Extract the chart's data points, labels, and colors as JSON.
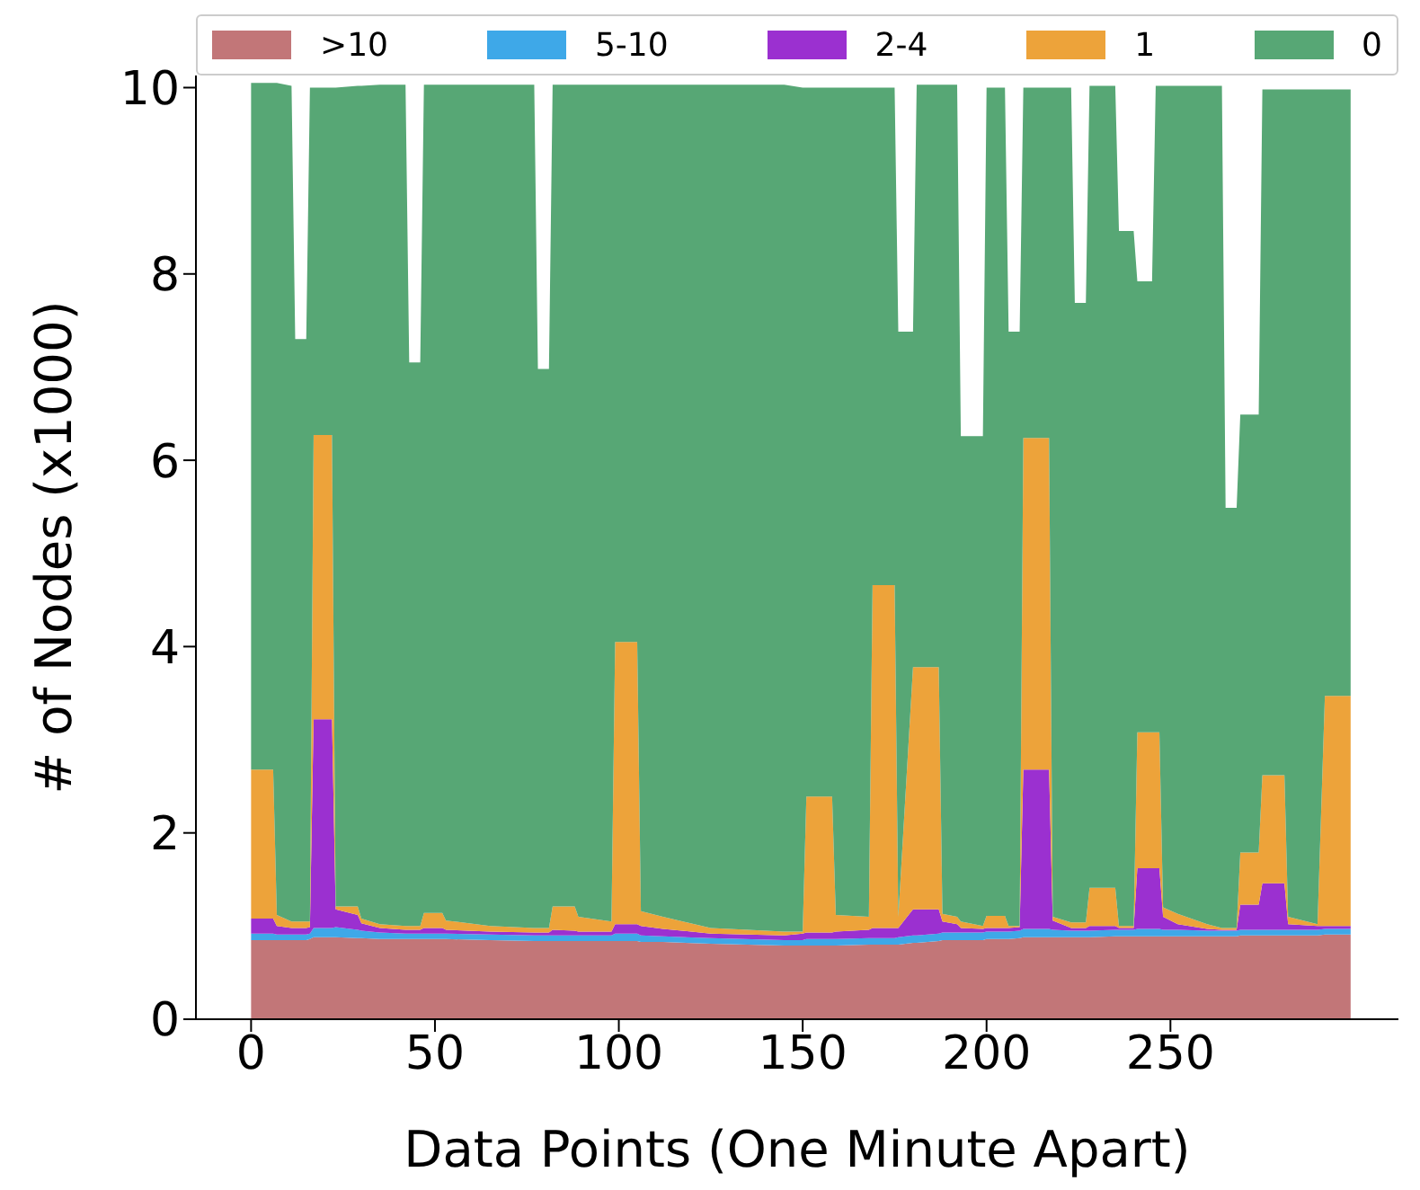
{
  "chart_data": {
    "type": "area",
    "stacked": true,
    "xlabel": "Data Points (One Minute Apart)",
    "ylabel": "# of Nodes (x1000)",
    "legend": "top",
    "grid": false,
    "xlim": [
      -15,
      312
    ],
    "xticks": [
      0,
      50,
      100,
      150,
      200,
      250
    ],
    "ylim": [
      0,
      10.13
    ],
    "yticks": [
      0,
      2,
      4,
      6,
      8,
      10
    ],
    "x": [
      0,
      6,
      7,
      11,
      12,
      15,
      16,
      17,
      22,
      23,
      29,
      30,
      35,
      42,
      43,
      46,
      47,
      52,
      53,
      65,
      77,
      78,
      81,
      82,
      88,
      89,
      98,
      99,
      105,
      106,
      112,
      125,
      145,
      150,
      151,
      158,
      159,
      168,
      169,
      175,
      176,
      180,
      181,
      187,
      188,
      192,
      193,
      199,
      200,
      205,
      206,
      209,
      210,
      217,
      218,
      223,
      224,
      227,
      228,
      235,
      236,
      240,
      241,
      245,
      246,
      247,
      248,
      252,
      260,
      264,
      265,
      268,
      269,
      274,
      275,
      281,
      282,
      290,
      292,
      299
    ],
    "series": [
      {
        "name": ">10",
        "color": "#c27678",
        "values": [
          0.85,
          0.85,
          0.85,
          0.85,
          0.85,
          0.85,
          0.86,
          0.88,
          0.88,
          0.88,
          0.87,
          0.87,
          0.86,
          0.86,
          0.86,
          0.86,
          0.86,
          0.86,
          0.86,
          0.85,
          0.84,
          0.84,
          0.84,
          0.84,
          0.84,
          0.84,
          0.84,
          0.84,
          0.84,
          0.83,
          0.83,
          0.81,
          0.79,
          0.79,
          0.79,
          0.79,
          0.79,
          0.8,
          0.8,
          0.8,
          0.8,
          0.82,
          0.82,
          0.84,
          0.85,
          0.85,
          0.85,
          0.85,
          0.86,
          0.86,
          0.86,
          0.87,
          0.88,
          0.88,
          0.88,
          0.88,
          0.88,
          0.88,
          0.88,
          0.89,
          0.89,
          0.89,
          0.89,
          0.89,
          0.89,
          0.89,
          0.89,
          0.89,
          0.89,
          0.89,
          0.89,
          0.89,
          0.9,
          0.9,
          0.9,
          0.9,
          0.9,
          0.9,
          0.91,
          0.91
        ]
      },
      {
        "name": "5-10",
        "color": "#3ea8e8",
        "values": [
          0.07,
          0.07,
          0.06,
          0.06,
          0.06,
          0.06,
          0.06,
          0.1,
          0.1,
          0.11,
          0.09,
          0.08,
          0.07,
          0.06,
          0.06,
          0.06,
          0.06,
          0.06,
          0.06,
          0.06,
          0.06,
          0.06,
          0.06,
          0.06,
          0.06,
          0.06,
          0.06,
          0.08,
          0.08,
          0.07,
          0.06,
          0.06,
          0.06,
          0.06,
          0.07,
          0.07,
          0.07,
          0.07,
          0.07,
          0.07,
          0.08,
          0.08,
          0.08,
          0.08,
          0.08,
          0.08,
          0.08,
          0.08,
          0.08,
          0.08,
          0.08,
          0.08,
          0.09,
          0.09,
          0.08,
          0.07,
          0.07,
          0.07,
          0.07,
          0.07,
          0.07,
          0.07,
          0.08,
          0.08,
          0.08,
          0.08,
          0.07,
          0.07,
          0.06,
          0.06,
          0.06,
          0.06,
          0.06,
          0.06,
          0.06,
          0.06,
          0.06,
          0.06,
          0.06,
          0.06
        ]
      },
      {
        "name": "2-4",
        "color": "#9b30d0",
        "values": [
          0.16,
          0.16,
          0.09,
          0.07,
          0.07,
          0.07,
          0.07,
          2.24,
          2.24,
          0.19,
          0.16,
          0.08,
          0.05,
          0.04,
          0.04,
          0.04,
          0.06,
          0.06,
          0.04,
          0.03,
          0.03,
          0.03,
          0.03,
          0.06,
          0.05,
          0.04,
          0.04,
          0.1,
          0.1,
          0.1,
          0.08,
          0.05,
          0.05,
          0.07,
          0.07,
          0.07,
          0.08,
          0.09,
          0.11,
          0.11,
          0.1,
          0.28,
          0.28,
          0.26,
          0.12,
          0.09,
          0.05,
          0.04,
          0.04,
          0.04,
          0.04,
          0.04,
          1.71,
          1.71,
          0.1,
          0.03,
          0.03,
          0.03,
          0.05,
          0.04,
          0.02,
          0.02,
          0.65,
          0.65,
          0.65,
          0.65,
          0.14,
          0.06,
          0.02,
          0.01,
          0.01,
          0.01,
          0.27,
          0.27,
          0.5,
          0.5,
          0.06,
          0.04,
          0.03,
          0.03
        ]
      },
      {
        "name": "1",
        "color": "#eda33a",
        "values": [
          1.6,
          1.6,
          0.12,
          0.07,
          0.07,
          0.07,
          0.06,
          3.05,
          3.05,
          0.03,
          0.09,
          0.05,
          0.04,
          0.04,
          0.04,
          0.04,
          0.16,
          0.16,
          0.1,
          0.06,
          0.05,
          0.05,
          0.05,
          0.25,
          0.26,
          0.16,
          0.11,
          3.03,
          3.03,
          0.16,
          0.13,
          0.06,
          0.04,
          0.02,
          1.46,
          1.46,
          0.18,
          0.14,
          3.68,
          3.68,
          0.12,
          2.6,
          2.6,
          2.6,
          0.08,
          0.08,
          0.07,
          0.03,
          0.13,
          0.13,
          0.02,
          0.01,
          3.56,
          3.56,
          0.04,
          0.06,
          0.06,
          0.06,
          0.41,
          0.41,
          0.02,
          0.02,
          1.46,
          1.46,
          1.46,
          1.46,
          0.1,
          0.11,
          0.05,
          0.02,
          0.02,
          0.02,
          0.56,
          0.56,
          1.16,
          1.16,
          0.08,
          0.02,
          2.47,
          2.47
        ]
      },
      {
        "name": "0",
        "color": "#57a775",
        "values": [
          7.37,
          7.37,
          8.93,
          8.97,
          6.25,
          6.25,
          8.95,
          3.73,
          3.73,
          8.79,
          8.81,
          8.94,
          9.01,
          9.03,
          6.05,
          6.05,
          8.89,
          8.89,
          8.97,
          9.03,
          9.05,
          6.0,
          6.0,
          8.82,
          8.82,
          8.93,
          8.98,
          5.98,
          5.98,
          8.87,
          8.93,
          9.05,
          9.09,
          9.06,
          7.61,
          7.61,
          8.88,
          8.9,
          5.34,
          5.34,
          6.28,
          3.6,
          6.25,
          6.25,
          8.9,
          8.93,
          5.21,
          5.26,
          8.89,
          8.89,
          6.38,
          6.38,
          3.76,
          3.76,
          8.9,
          8.96,
          6.65,
          6.65,
          8.61,
          8.61,
          7.46,
          7.46,
          4.84,
          4.84,
          6.94,
          6.94,
          8.82,
          8.89,
          9.0,
          9.04,
          4.51,
          4.51,
          4.7,
          4.7,
          7.36,
          7.36,
          8.88,
          8.96,
          6.51,
          6.51
        ]
      }
    ]
  }
}
